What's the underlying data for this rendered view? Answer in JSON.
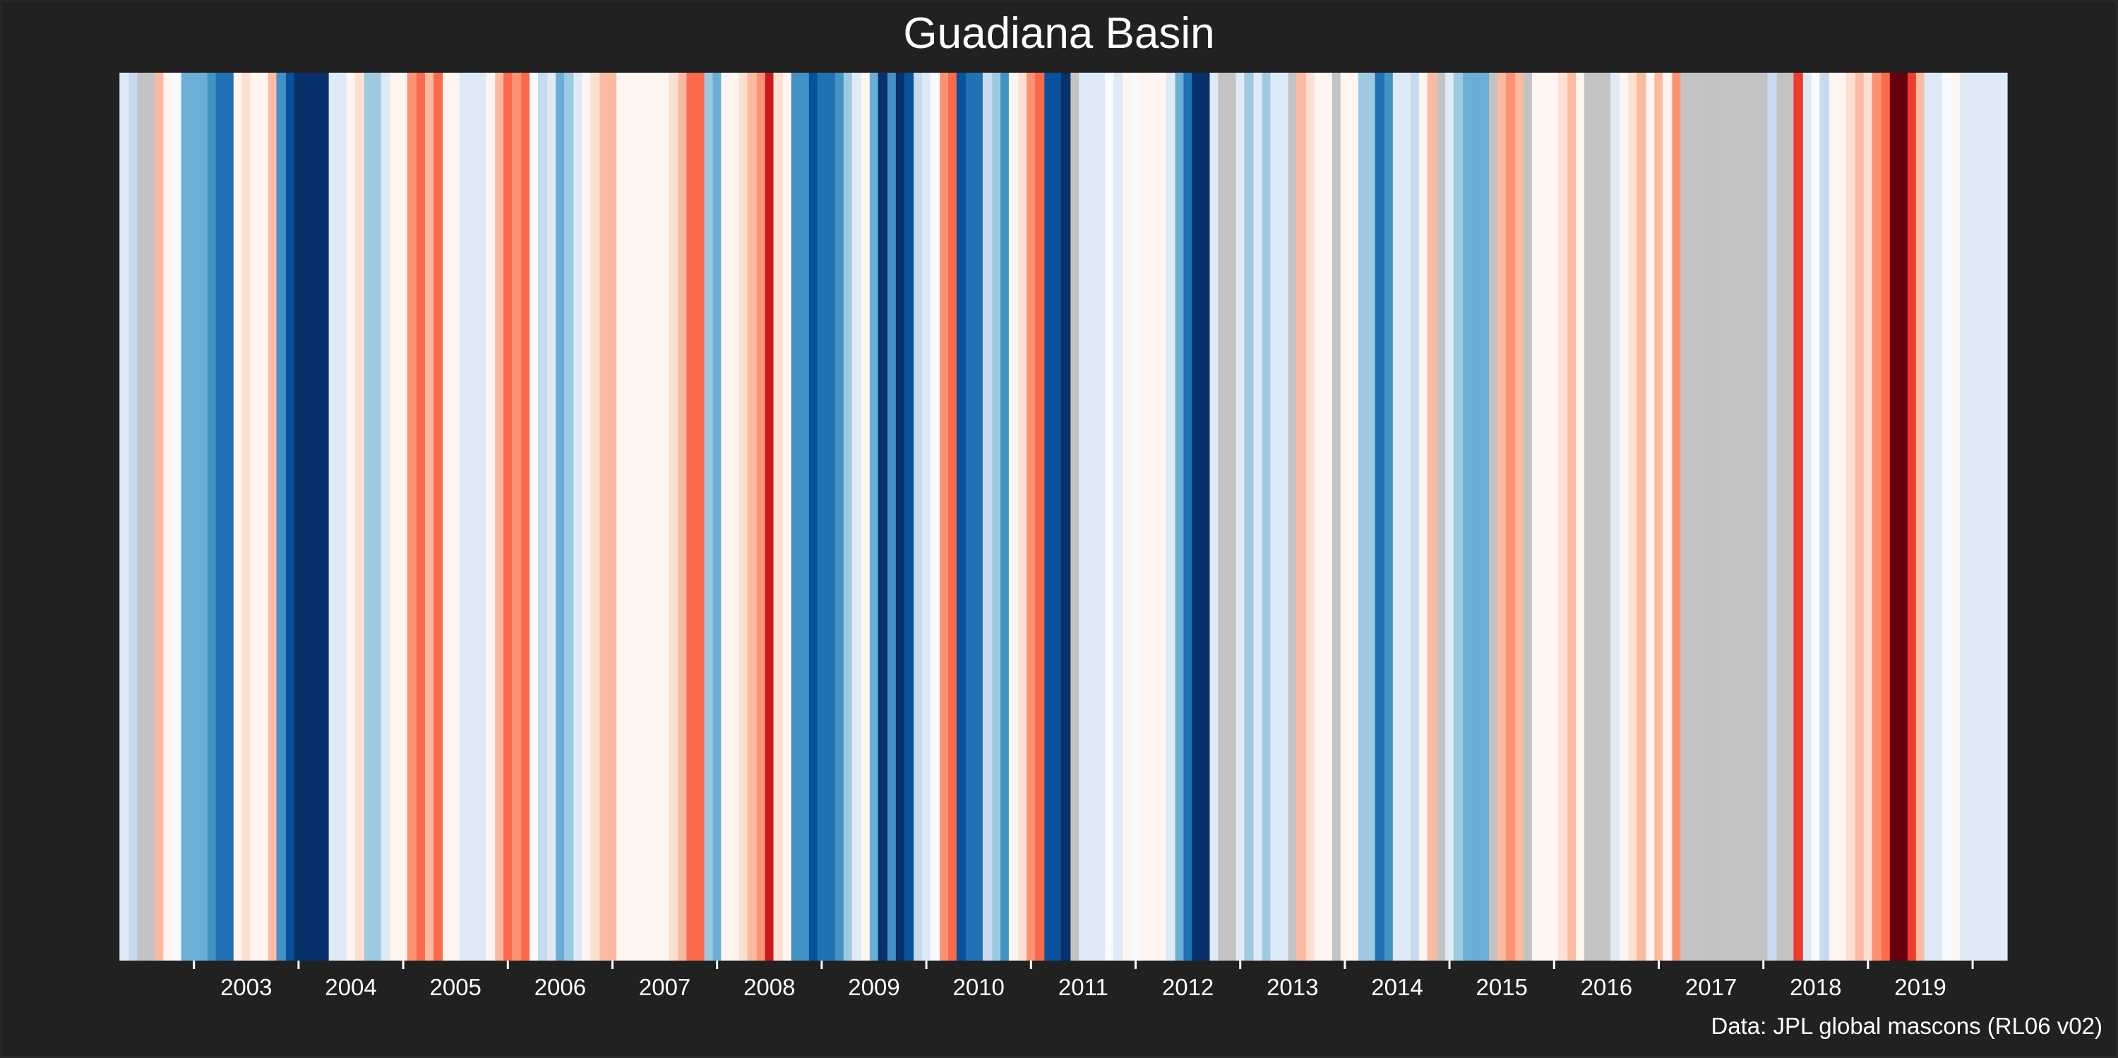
{
  "chart_data": {
    "type": "bar",
    "title": "Guadiana Basin",
    "xlabel": "",
    "ylabel": "",
    "source": "Data: JPL global mascons (RL06 v02)",
    "grid": false,
    "legend": "none",
    "xlim": [
      2002.28,
      2020.33
    ],
    "value_range": [
      -4,
      4
    ],
    "colors": {
      "background": "#212121",
      "missing": "#c3c3c3",
      "text": "#ffffff",
      "palette": [
        "#08306b",
        "#08519c",
        "#2171b5",
        "#4292c6",
        "#6baed6",
        "#9ecae1",
        "#c6dbef",
        "#deebf7",
        "#f7fbff",
        "#fff5f0",
        "#fee0d2",
        "#fcbba1",
        "#fc9272",
        "#fb6a4a",
        "#ef3b2c",
        "#cb181d",
        "#a50f15",
        "#67000d"
      ]
    },
    "ticks": [
      {
        "year": 2003,
        "label": "2003"
      },
      {
        "year": 2004,
        "label": "2004"
      },
      {
        "year": 2005,
        "label": "2005"
      },
      {
        "year": 2006,
        "label": "2006"
      },
      {
        "year": 2007,
        "label": "2007"
      },
      {
        "year": 2008,
        "label": "2008"
      },
      {
        "year": 2009,
        "label": "2009"
      },
      {
        "year": 2010,
        "label": "2010"
      },
      {
        "year": 2011,
        "label": "2011"
      },
      {
        "year": 2012,
        "label": "2012"
      },
      {
        "year": 2013,
        "label": "2013"
      },
      {
        "year": 2014,
        "label": "2014"
      },
      {
        "year": 2015,
        "label": "2015"
      },
      {
        "year": 2016,
        "label": "2016"
      },
      {
        "year": 2017,
        "label": "2017"
      },
      {
        "year": 2018,
        "label": "2018"
      },
      {
        "year": 2019,
        "label": "2019"
      }
    ],
    "stripes": [
      {
        "x": 2002.33,
        "value": -0.5
      },
      {
        "x": 2002.42,
        "value": -1.0
      },
      {
        "x": 2002.5,
        "value": null
      },
      {
        "x": 2002.58,
        "value": null
      },
      {
        "x": 2002.67,
        "value": 1.2
      },
      {
        "x": 2002.75,
        "value": 0.4
      },
      {
        "x": 2002.83,
        "value": -0.2
      },
      {
        "x": 2002.92,
        "value": -1.8
      },
      {
        "x": 2003.0,
        "value": -1.8
      },
      {
        "x": 2003.08,
        "value": -2.2
      },
      {
        "x": 2003.17,
        "value": -2.6
      },
      {
        "x": 2003.25,
        "value": -3.0
      },
      {
        "x": 2003.33,
        "value": -3.0
      },
      {
        "x": 2003.42,
        "value": 0.3
      },
      {
        "x": 2003.5,
        "value": 0.6
      },
      {
        "x": 2003.58,
        "value": 0.1
      },
      {
        "x": 2003.67,
        "value": 0.4
      },
      {
        "x": 2003.75,
        "value": 1.2
      },
      {
        "x": 2003.83,
        "value": -2.6
      },
      {
        "x": 2003.92,
        "value": -3.2
      },
      {
        "x": 2004.0,
        "value": -4.0
      },
      {
        "x": 2004.08,
        "value": -3.6
      },
      {
        "x": 2004.17,
        "value": -4.0
      },
      {
        "x": 2004.25,
        "value": -4.0
      },
      {
        "x": 2004.33,
        "value": -0.5
      },
      {
        "x": 2004.42,
        "value": -0.5
      },
      {
        "x": 2004.5,
        "value": 0.1
      },
      {
        "x": 2004.58,
        "value": 0.6
      },
      {
        "x": 2004.67,
        "value": -1.4
      },
      {
        "x": 2004.75,
        "value": -1.4
      },
      {
        "x": 2004.83,
        "value": -0.5
      },
      {
        "x": 2004.92,
        "value": 0.2
      },
      {
        "x": 2005.0,
        "value": 0.4
      },
      {
        "x": 2005.08,
        "value": 1.6
      },
      {
        "x": 2005.17,
        "value": 2.2
      },
      {
        "x": 2005.25,
        "value": 1.2
      },
      {
        "x": 2005.33,
        "value": 2.2
      },
      {
        "x": 2005.42,
        "value": 0.1
      },
      {
        "x": 2005.5,
        "value": 0.1
      },
      {
        "x": 2005.58,
        "value": -0.5
      },
      {
        "x": 2005.67,
        "value": -0.5
      },
      {
        "x": 2005.75,
        "value": -0.5
      },
      {
        "x": 2005.83,
        "value": 0.2
      },
      {
        "x": 2005.92,
        "value": 1.0
      },
      {
        "x": 2006.0,
        "value": 2.2
      },
      {
        "x": 2006.08,
        "value": 1.4
      },
      {
        "x": 2006.17,
        "value": 2.2
      },
      {
        "x": 2006.25,
        "value": -0.3
      },
      {
        "x": 2006.33,
        "value": -1.0
      },
      {
        "x": 2006.42,
        "value": -0.5
      },
      {
        "x": 2006.5,
        "value": -1.8
      },
      {
        "x": 2006.58,
        "value": -1.4
      },
      {
        "x": 2006.67,
        "value": -0.5
      },
      {
        "x": 2006.75,
        "value": 0.4
      },
      {
        "x": 2006.83,
        "value": 0.6
      },
      {
        "x": 2006.92,
        "value": 0.9
      },
      {
        "x": 2007.0,
        "value": 1.2
      },
      {
        "x": 2007.08,
        "value": 0.4
      },
      {
        "x": 2007.17,
        "value": 0.2
      },
      {
        "x": 2007.25,
        "value": 0.2
      },
      {
        "x": 2007.33,
        "value": 0.2
      },
      {
        "x": 2007.42,
        "value": 0.2
      },
      {
        "x": 2007.5,
        "value": 0.4
      },
      {
        "x": 2007.58,
        "value": 0.6
      },
      {
        "x": 2007.67,
        "value": 0.9
      },
      {
        "x": 2007.75,
        "value": 2.2
      },
      {
        "x": 2007.83,
        "value": 1.8
      },
      {
        "x": 2007.92,
        "value": -1.4
      },
      {
        "x": 2008.0,
        "value": -2.2
      },
      {
        "x": 2008.08,
        "value": 0.1
      },
      {
        "x": 2008.17,
        "value": 0.4
      },
      {
        "x": 2008.25,
        "value": 0.6
      },
      {
        "x": 2008.33,
        "value": 0.9
      },
      {
        "x": 2008.42,
        "value": 1.4
      },
      {
        "x": 2008.5,
        "value": 2.8
      },
      {
        "x": 2008.58,
        "value": 0.6
      },
      {
        "x": 2008.67,
        "value": 0.2
      },
      {
        "x": 2008.75,
        "value": -2.6
      },
      {
        "x": 2008.83,
        "value": -2.6
      },
      {
        "x": 2008.92,
        "value": -3.2
      },
      {
        "x": 2009.0,
        "value": -3.0
      },
      {
        "x": 2009.08,
        "value": -3.0
      },
      {
        "x": 2009.17,
        "value": -2.6
      },
      {
        "x": 2009.25,
        "value": -1.4
      },
      {
        "x": 2009.33,
        "value": -0.5
      },
      {
        "x": 2009.42,
        "value": 0.1
      },
      {
        "x": 2009.5,
        "value": -1.8
      },
      {
        "x": 2009.58,
        "value": -3.6
      },
      {
        "x": 2009.67,
        "value": -2.6
      },
      {
        "x": 2009.75,
        "value": -3.6
      },
      {
        "x": 2009.83,
        "value": -3.2
      },
      {
        "x": 2009.92,
        "value": -1.0
      },
      {
        "x": 2010.0,
        "value": -0.5
      },
      {
        "x": 2010.08,
        "value": -0.1
      },
      {
        "x": 2010.17,
        "value": 1.6
      },
      {
        "x": 2010.25,
        "value": 2.2
      },
      {
        "x": 2010.33,
        "value": -3.2
      },
      {
        "x": 2010.42,
        "value": -3.0
      },
      {
        "x": 2010.5,
        "value": -3.0
      },
      {
        "x": 2010.58,
        "value": -1.0
      },
      {
        "x": 2010.67,
        "value": -1.4
      },
      {
        "x": 2010.75,
        "value": -2.6
      },
      {
        "x": 2010.83,
        "value": 0.0
      },
      {
        "x": 2010.92,
        "value": 0.6
      },
      {
        "x": 2011.0,
        "value": 1.6
      },
      {
        "x": 2011.08,
        "value": 2.2
      },
      {
        "x": 2011.17,
        "value": -3.2
      },
      {
        "x": 2011.25,
        "value": -3.2
      },
      {
        "x": 2011.33,
        "value": -4.0
      },
      {
        "x": 2011.42,
        "value": null
      },
      {
        "x": 2011.5,
        "value": -0.5
      },
      {
        "x": 2011.58,
        "value": -0.5
      },
      {
        "x": 2011.67,
        "value": -0.5
      },
      {
        "x": 2011.75,
        "value": -0.2
      },
      {
        "x": 2011.83,
        "value": -0.5
      },
      {
        "x": 2011.92,
        "value": 0.1
      },
      {
        "x": 2012.0,
        "value": -0.1
      },
      {
        "x": 2012.08,
        "value": 0.2
      },
      {
        "x": 2012.17,
        "value": 0.2
      },
      {
        "x": 2012.25,
        "value": 0.3
      },
      {
        "x": 2012.33,
        "value": -0.5
      },
      {
        "x": 2012.42,
        "value": -2.2
      },
      {
        "x": 2012.5,
        "value": -3.0
      },
      {
        "x": 2012.58,
        "value": -3.6
      },
      {
        "x": 2012.67,
        "value": -4.0
      },
      {
        "x": 2012.75,
        "value": -0.5
      },
      {
        "x": 2012.83,
        "value": null
      },
      {
        "x": 2012.92,
        "value": null
      },
      {
        "x": 2013.0,
        "value": -0.5
      },
      {
        "x": 2013.08,
        "value": -1.4
      },
      {
        "x": 2013.17,
        "value": -0.5
      },
      {
        "x": 2013.25,
        "value": -1.4
      },
      {
        "x": 2013.33,
        "value": -0.5
      },
      {
        "x": 2013.42,
        "value": -0.5
      },
      {
        "x": 2013.5,
        "value": null
      },
      {
        "x": 2013.58,
        "value": 1.2
      },
      {
        "x": 2013.67,
        "value": 0.6
      },
      {
        "x": 2013.75,
        "value": 0.4
      },
      {
        "x": 2013.83,
        "value": 0.2
      },
      {
        "x": 2013.92,
        "value": null
      },
      {
        "x": 2014.0,
        "value": 0.0
      },
      {
        "x": 2014.08,
        "value": 0.1
      },
      {
        "x": 2014.17,
        "value": -1.4
      },
      {
        "x": 2014.25,
        "value": -1.4
      },
      {
        "x": 2014.33,
        "value": -3.0
      },
      {
        "x": 2014.42,
        "value": -2.6
      },
      {
        "x": 2014.5,
        "value": -0.5
      },
      {
        "x": 2014.58,
        "value": -0.5
      },
      {
        "x": 2014.67,
        "value": -1.0
      },
      {
        "x": 2014.75,
        "value": 0.4
      },
      {
        "x": 2014.83,
        "value": 1.2
      },
      {
        "x": 2014.92,
        "value": null
      },
      {
        "x": 2015.0,
        "value": -0.5
      },
      {
        "x": 2015.08,
        "value": -1.4
      },
      {
        "x": 2015.17,
        "value": -1.8
      },
      {
        "x": 2015.25,
        "value": -2.2
      },
      {
        "x": 2015.33,
        "value": -1.8
      },
      {
        "x": 2015.42,
        "value": null
      },
      {
        "x": 2015.5,
        "value": 1.2
      },
      {
        "x": 2015.58,
        "value": 1.4
      },
      {
        "x": 2015.67,
        "value": 1.2
      },
      {
        "x": 2015.75,
        "value": null
      },
      {
        "x": 2015.83,
        "value": 0.3
      },
      {
        "x": 2015.92,
        "value": 0.1
      },
      {
        "x": 2016.0,
        "value": 0.2
      },
      {
        "x": 2016.08,
        "value": 0.6
      },
      {
        "x": 2016.17,
        "value": 1.2
      },
      {
        "x": 2016.25,
        "value": 0.2
      },
      {
        "x": 2016.33,
        "value": null
      },
      {
        "x": 2016.42,
        "value": null
      },
      {
        "x": 2016.5,
        "value": null
      },
      {
        "x": 2016.58,
        "value": -0.5
      },
      {
        "x": 2016.67,
        "value": 0.1
      },
      {
        "x": 2016.75,
        "value": 0.6
      },
      {
        "x": 2016.83,
        "value": 1.2
      },
      {
        "x": 2016.92,
        "value": 0.2
      },
      {
        "x": 2017.0,
        "value": 1.0
      },
      {
        "x": 2017.08,
        "value": 0.2
      },
      {
        "x": 2017.17,
        "value": 1.6
      },
      {
        "x": 2017.25,
        "value": null
      },
      {
        "x": 2017.33,
        "value": null
      },
      {
        "x": 2017.42,
        "value": null
      },
      {
        "x": 2017.5,
        "value": null
      },
      {
        "x": 2017.58,
        "value": null
      },
      {
        "x": 2017.67,
        "value": null
      },
      {
        "x": 2017.75,
        "value": null
      },
      {
        "x": 2017.83,
        "value": null
      },
      {
        "x": 2017.92,
        "value": null
      },
      {
        "x": 2018.0,
        "value": null
      },
      {
        "x": 2018.08,
        "value": -1.0
      },
      {
        "x": 2018.17,
        "value": null
      },
      {
        "x": 2018.25,
        "value": null
      },
      {
        "x": 2018.33,
        "value": 2.6
      },
      {
        "x": 2018.42,
        "value": -0.5
      },
      {
        "x": 2018.5,
        "value": -0.3
      },
      {
        "x": 2018.58,
        "value": -1.0
      },
      {
        "x": 2018.67,
        "value": 0.2
      },
      {
        "x": 2018.75,
        "value": 0.4
      },
      {
        "x": 2018.83,
        "value": 0.6
      },
      {
        "x": 2018.92,
        "value": 1.2
      },
      {
        "x": 2019.0,
        "value": 0.6
      },
      {
        "x": 2019.08,
        "value": 1.4
      },
      {
        "x": 2019.17,
        "value": 2.2
      },
      {
        "x": 2019.25,
        "value": 3.8
      },
      {
        "x": 2019.33,
        "value": 4.0
      },
      {
        "x": 2019.42,
        "value": 2.6
      },
      {
        "x": 2019.5,
        "value": 0.9
      },
      {
        "x": 2019.58,
        "value": -0.5
      },
      {
        "x": 2019.67,
        "value": -0.5
      },
      {
        "x": 2019.75,
        "value": -0.2
      },
      {
        "x": 2019.83,
        "value": 0.1
      },
      {
        "x": 2019.92,
        "value": -0.5
      },
      {
        "x": 2020.0,
        "value": -0.5
      },
      {
        "x": 2020.08,
        "value": -0.5
      },
      {
        "x": 2020.17,
        "value": -0.5
      },
      {
        "x": 2020.25,
        "value": -0.5
      }
    ]
  }
}
